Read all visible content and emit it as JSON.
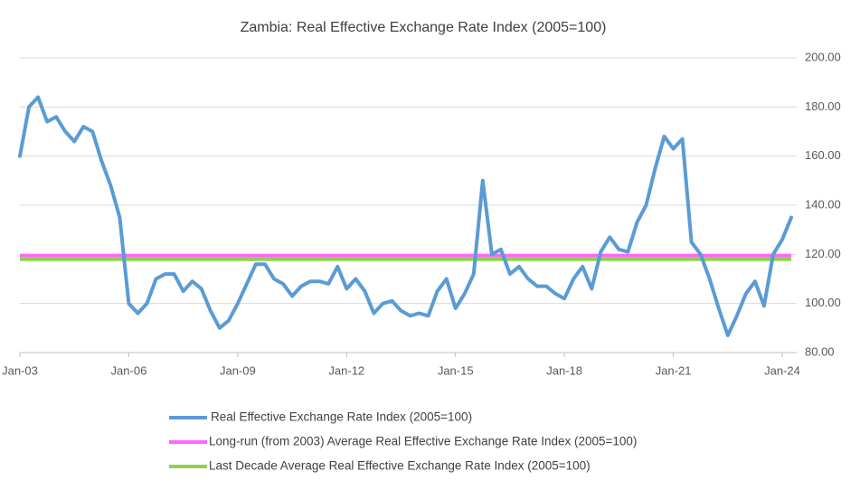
{
  "chart_data": {
    "type": "line",
    "title": "Zambia: Real Effective Exchange Rate Index (2005=100)",
    "categories": [
      "Jan-03",
      null,
      null,
      null,
      null,
      null,
      null,
      null,
      null,
      null,
      null,
      null,
      "Jan-06",
      null,
      null,
      null,
      null,
      null,
      null,
      null,
      null,
      null,
      null,
      null,
      "Jan-09",
      null,
      null,
      null,
      null,
      null,
      null,
      null,
      null,
      null,
      null,
      null,
      "Jan-12",
      null,
      null,
      null,
      null,
      null,
      null,
      null,
      null,
      null,
      null,
      null,
      "Jan-15",
      null,
      null,
      null,
      null,
      null,
      null,
      null,
      null,
      null,
      null,
      null,
      "Jan-18",
      null,
      null,
      null,
      null,
      null,
      null,
      null,
      null,
      null,
      null,
      null,
      "Jan-21",
      null,
      null,
      null,
      null,
      null,
      null,
      null,
      null,
      null,
      null,
      null,
      "Jan-24",
      null
    ],
    "series": [
      {
        "name": "Real Effective Exchange Rate Index (2005=100)",
        "color": "#5b9bd5",
        "values": [
          160,
          180,
          184,
          174,
          176,
          170,
          166,
          172,
          170,
          158,
          148,
          135,
          100,
          96,
          100,
          110,
          112,
          112,
          105,
          109,
          106,
          97,
          90,
          93,
          100,
          108,
          116,
          116,
          110,
          108,
          103,
          107,
          109,
          109,
          108,
          115,
          106,
          110,
          105,
          96,
          100,
          101,
          97,
          95,
          96,
          95,
          105,
          110,
          98,
          104,
          112,
          150,
          120,
          122,
          112,
          115,
          110,
          107,
          107,
          104,
          102,
          110,
          115,
          106,
          121,
          127,
          122,
          121,
          133,
          140,
          155,
          168,
          163,
          167,
          125,
          120,
          110,
          98,
          87,
          95,
          104,
          109,
          99,
          120,
          126,
          135
        ]
      }
    ],
    "reference_lines": [
      {
        "name": "Long-run (from 2003) Average Real Effective Exchange Rate Index (2005=100)",
        "color": "#ff66ff",
        "value": 119.5
      },
      {
        "name": "Last Decade  Average Real Effective Exchange Rate Index (2005=100)",
        "color": "#92d050",
        "value": 118
      }
    ],
    "ylim": [
      80,
      200
    ],
    "yticks": [
      {
        "value": 80,
        "label": "80.00"
      },
      {
        "value": 100,
        "label": "100.00"
      },
      {
        "value": 120,
        "label": "120.00"
      },
      {
        "value": 140,
        "label": "140.00"
      },
      {
        "value": 160,
        "label": "160.00"
      },
      {
        "value": 180,
        "label": "180.00"
      },
      {
        "value": 200,
        "label": "200.00"
      }
    ],
    "grid": true,
    "legend": "bottom"
  }
}
